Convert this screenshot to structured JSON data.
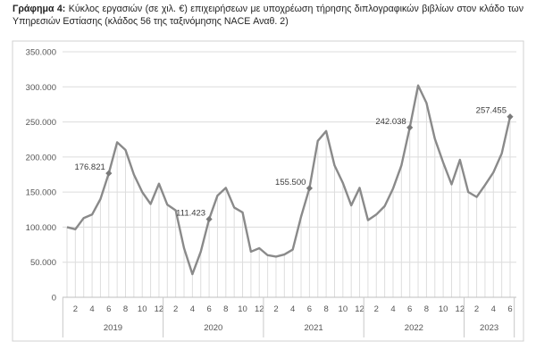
{
  "caption": {
    "label": "Γράφημα 4:",
    "text": "Κύκλος εργασιών (σε χιλ. €) επιχειρήσεων με υποχρέωση τήρησης διπλογραφικών βιβλίων στον κλάδο των Υπηρεσιών Εστίασης (κλάδος 56 της ταξινόμησης NACE Αναθ. 2)"
  },
  "chart_data": {
    "type": "line",
    "title": "",
    "xlabel": "",
    "ylabel": "",
    "ylim": [
      0,
      350000
    ],
    "yticks": [
      0,
      50000,
      100000,
      150000,
      200000,
      250000,
      300000,
      350000
    ],
    "ytick_labels": [
      "0",
      "50.000",
      "100.000",
      "150.000",
      "200.000",
      "250.000",
      "300.000",
      "350.000"
    ],
    "grid": "horizontal",
    "legend": "none",
    "years": [
      "2019",
      "2020",
      "2021",
      "2022",
      "2023"
    ],
    "months_per_year": [
      12,
      12,
      12,
      12,
      6
    ],
    "x_tick_labels": [
      "2",
      "4",
      "6",
      "8",
      "10",
      "12",
      "2",
      "4",
      "6",
      "8",
      "10",
      "12",
      "2",
      "4",
      "6",
      "8",
      "10",
      "12",
      "2",
      "4",
      "6",
      "8",
      "10",
      "12",
      "2",
      "4",
      "6"
    ],
    "series": [
      {
        "color": "#8a8a8a",
        "values": [
          100000,
          97000,
          113000,
          118000,
          140000,
          176821,
          221000,
          210000,
          175000,
          150000,
          133000,
          162000,
          132000,
          124000,
          70000,
          33000,
          65000,
          111423,
          145000,
          156000,
          128000,
          121000,
          65000,
          70000,
          60000,
          58000,
          61000,
          68000,
          115000,
          155500,
          223000,
          237000,
          188000,
          163000,
          131000,
          156000,
          110000,
          118000,
          130000,
          155000,
          188000,
          242038,
          302000,
          277000,
          226000,
          192000,
          161000,
          196000,
          150000,
          143000,
          160000,
          178000,
          205000,
          257455
        ]
      }
    ],
    "data_labels": [
      {
        "index": 5,
        "text": "176.821"
      },
      {
        "index": 17,
        "text": "111.423"
      },
      {
        "index": 29,
        "text": "155.500"
      },
      {
        "index": 41,
        "text": "242.038"
      },
      {
        "index": 53,
        "text": "257.455"
      }
    ]
  }
}
